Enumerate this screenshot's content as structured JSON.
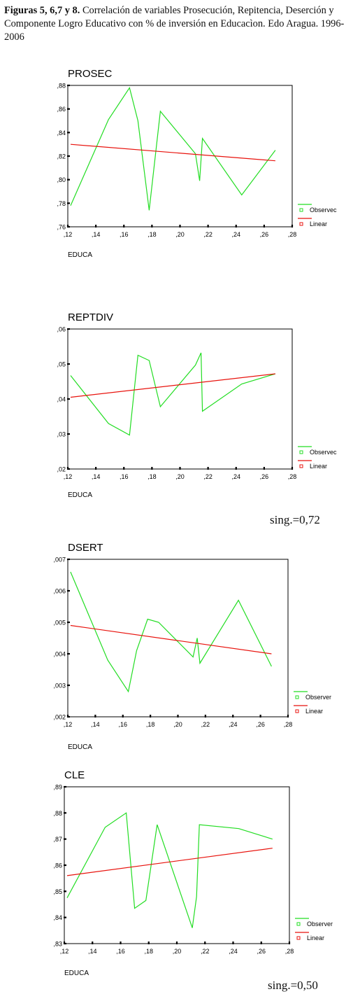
{
  "caption": {
    "bold": "Figuras 5, 6,7 y 8.",
    "text": " Correlación de variables Prosecución, Repitencia, Deserción y Componente Logro Educativo con % de inversión en Educacìon. Edo Aragua. 1996-2006"
  },
  "sig_labels": {
    "reptdiv": "sing.=0,72",
    "cle": "sing.=0,50"
  },
  "colors": {
    "observed": "#22dd22",
    "linear": "#e8120c",
    "axis": "#000000"
  },
  "chart_data": [
    {
      "type": "line",
      "title": "PROSEC",
      "xlabel": "EDUCA",
      "ylabel": "",
      "xlim": [
        0.12,
        0.28
      ],
      "ylim": [
        0.76,
        0.88
      ],
      "xticks": [
        ",12",
        ",14",
        ",16",
        ",18",
        ",20",
        ",22",
        ",24",
        ",26",
        ",28"
      ],
      "yticks": [
        ",76",
        ",78",
        ",80",
        ",82",
        ",84",
        ",86",
        ",88"
      ],
      "legend": [
        "Observec",
        "Linear"
      ],
      "series": [
        {
          "name": "Observec",
          "points": [
            [
              0.122,
              0.778
            ],
            [
              0.149,
              0.851
            ],
            [
              0.164,
              0.878
            ],
            [
              0.17,
              0.85
            ],
            [
              0.178,
              0.774
            ],
            [
              0.186,
              0.858
            ],
            [
              0.211,
              0.822
            ],
            [
              0.214,
              0.799
            ],
            [
              0.216,
              0.835
            ],
            [
              0.244,
              0.787
            ],
            [
              0.268,
              0.825
            ]
          ]
        },
        {
          "name": "Linear",
          "points": [
            [
              0.122,
              0.83
            ],
            [
              0.268,
              0.816
            ]
          ]
        }
      ]
    },
    {
      "type": "line",
      "title": "REPTDIV",
      "xlabel": "EDUCA",
      "ylabel": "",
      "xlim": [
        0.12,
        0.28
      ],
      "ylim": [
        0.02,
        0.06
      ],
      "xticks": [
        ",12",
        ",14",
        ",16",
        ",18",
        ",20",
        ",22",
        ",24",
        ",26",
        ",28"
      ],
      "yticks": [
        ",02",
        ",03",
        ",04",
        ",05",
        ",06"
      ],
      "legend": [
        "Observec",
        "Linear"
      ],
      "series": [
        {
          "name": "Observec",
          "points": [
            [
              0.122,
              0.0467
            ],
            [
              0.149,
              0.033
            ],
            [
              0.164,
              0.0297
            ],
            [
              0.17,
              0.0525
            ],
            [
              0.178,
              0.051
            ],
            [
              0.186,
              0.0378
            ],
            [
              0.211,
              0.0497
            ],
            [
              0.215,
              0.0532
            ],
            [
              0.216,
              0.0365
            ],
            [
              0.244,
              0.0443
            ],
            [
              0.268,
              0.0472
            ]
          ]
        },
        {
          "name": "Linear",
          "points": [
            [
              0.122,
              0.0405
            ],
            [
              0.268,
              0.0472
            ]
          ]
        }
      ]
    },
    {
      "type": "line",
      "title": "DSERT",
      "xlabel": "EDUCA",
      "ylabel": "",
      "xlim": [
        0.12,
        0.28
      ],
      "ylim": [
        0.002,
        0.007
      ],
      "xticks": [
        ",12",
        ",14",
        ",16",
        ",18",
        ",20",
        ",22",
        ",24",
        ",26",
        ",28"
      ],
      "yticks": [
        ",002",
        ",003",
        ",004",
        ",005",
        ",006",
        ",007"
      ],
      "legend": [
        "Observer",
        "Linear"
      ],
      "series": [
        {
          "name": "Observer",
          "points": [
            [
              0.122,
              0.0066
            ],
            [
              0.149,
              0.0038
            ],
            [
              0.164,
              0.0028
            ],
            [
              0.17,
              0.0041
            ],
            [
              0.178,
              0.0051
            ],
            [
              0.186,
              0.005
            ],
            [
              0.211,
              0.0039
            ],
            [
              0.214,
              0.0045
            ],
            [
              0.216,
              0.0037
            ],
            [
              0.244,
              0.0057
            ],
            [
              0.268,
              0.0036
            ]
          ]
        },
        {
          "name": "Linear",
          "points": [
            [
              0.122,
              0.0049
            ],
            [
              0.268,
              0.004
            ]
          ]
        }
      ]
    },
    {
      "type": "line",
      "title": "CLE",
      "xlabel": "EDUCA",
      "ylabel": "",
      "xlim": [
        0.12,
        0.28
      ],
      "ylim": [
        0.83,
        0.89
      ],
      "xticks": [
        ",12",
        ",14",
        ",16",
        ",18",
        ",20",
        ",22",
        ",24",
        ",26",
        ",28"
      ],
      "yticks": [
        ",83",
        ",84",
        ",85",
        ",86",
        ",87",
        ",88",
        ",89"
      ],
      "legend": [
        "Observer",
        "Linear"
      ],
      "series": [
        {
          "name": "Observer",
          "points": [
            [
              0.122,
              0.8475
            ],
            [
              0.149,
              0.8745
            ],
            [
              0.164,
              0.88
            ],
            [
              0.17,
              0.8435
            ],
            [
              0.178,
              0.8465
            ],
            [
              0.186,
              0.8755
            ],
            [
              0.211,
              0.836
            ],
            [
              0.214,
              0.848
            ],
            [
              0.216,
              0.8755
            ],
            [
              0.244,
              0.874
            ],
            [
              0.268,
              0.87
            ]
          ]
        },
        {
          "name": "Linear",
          "points": [
            [
              0.122,
              0.856
            ],
            [
              0.268,
              0.8665
            ]
          ]
        }
      ]
    }
  ]
}
